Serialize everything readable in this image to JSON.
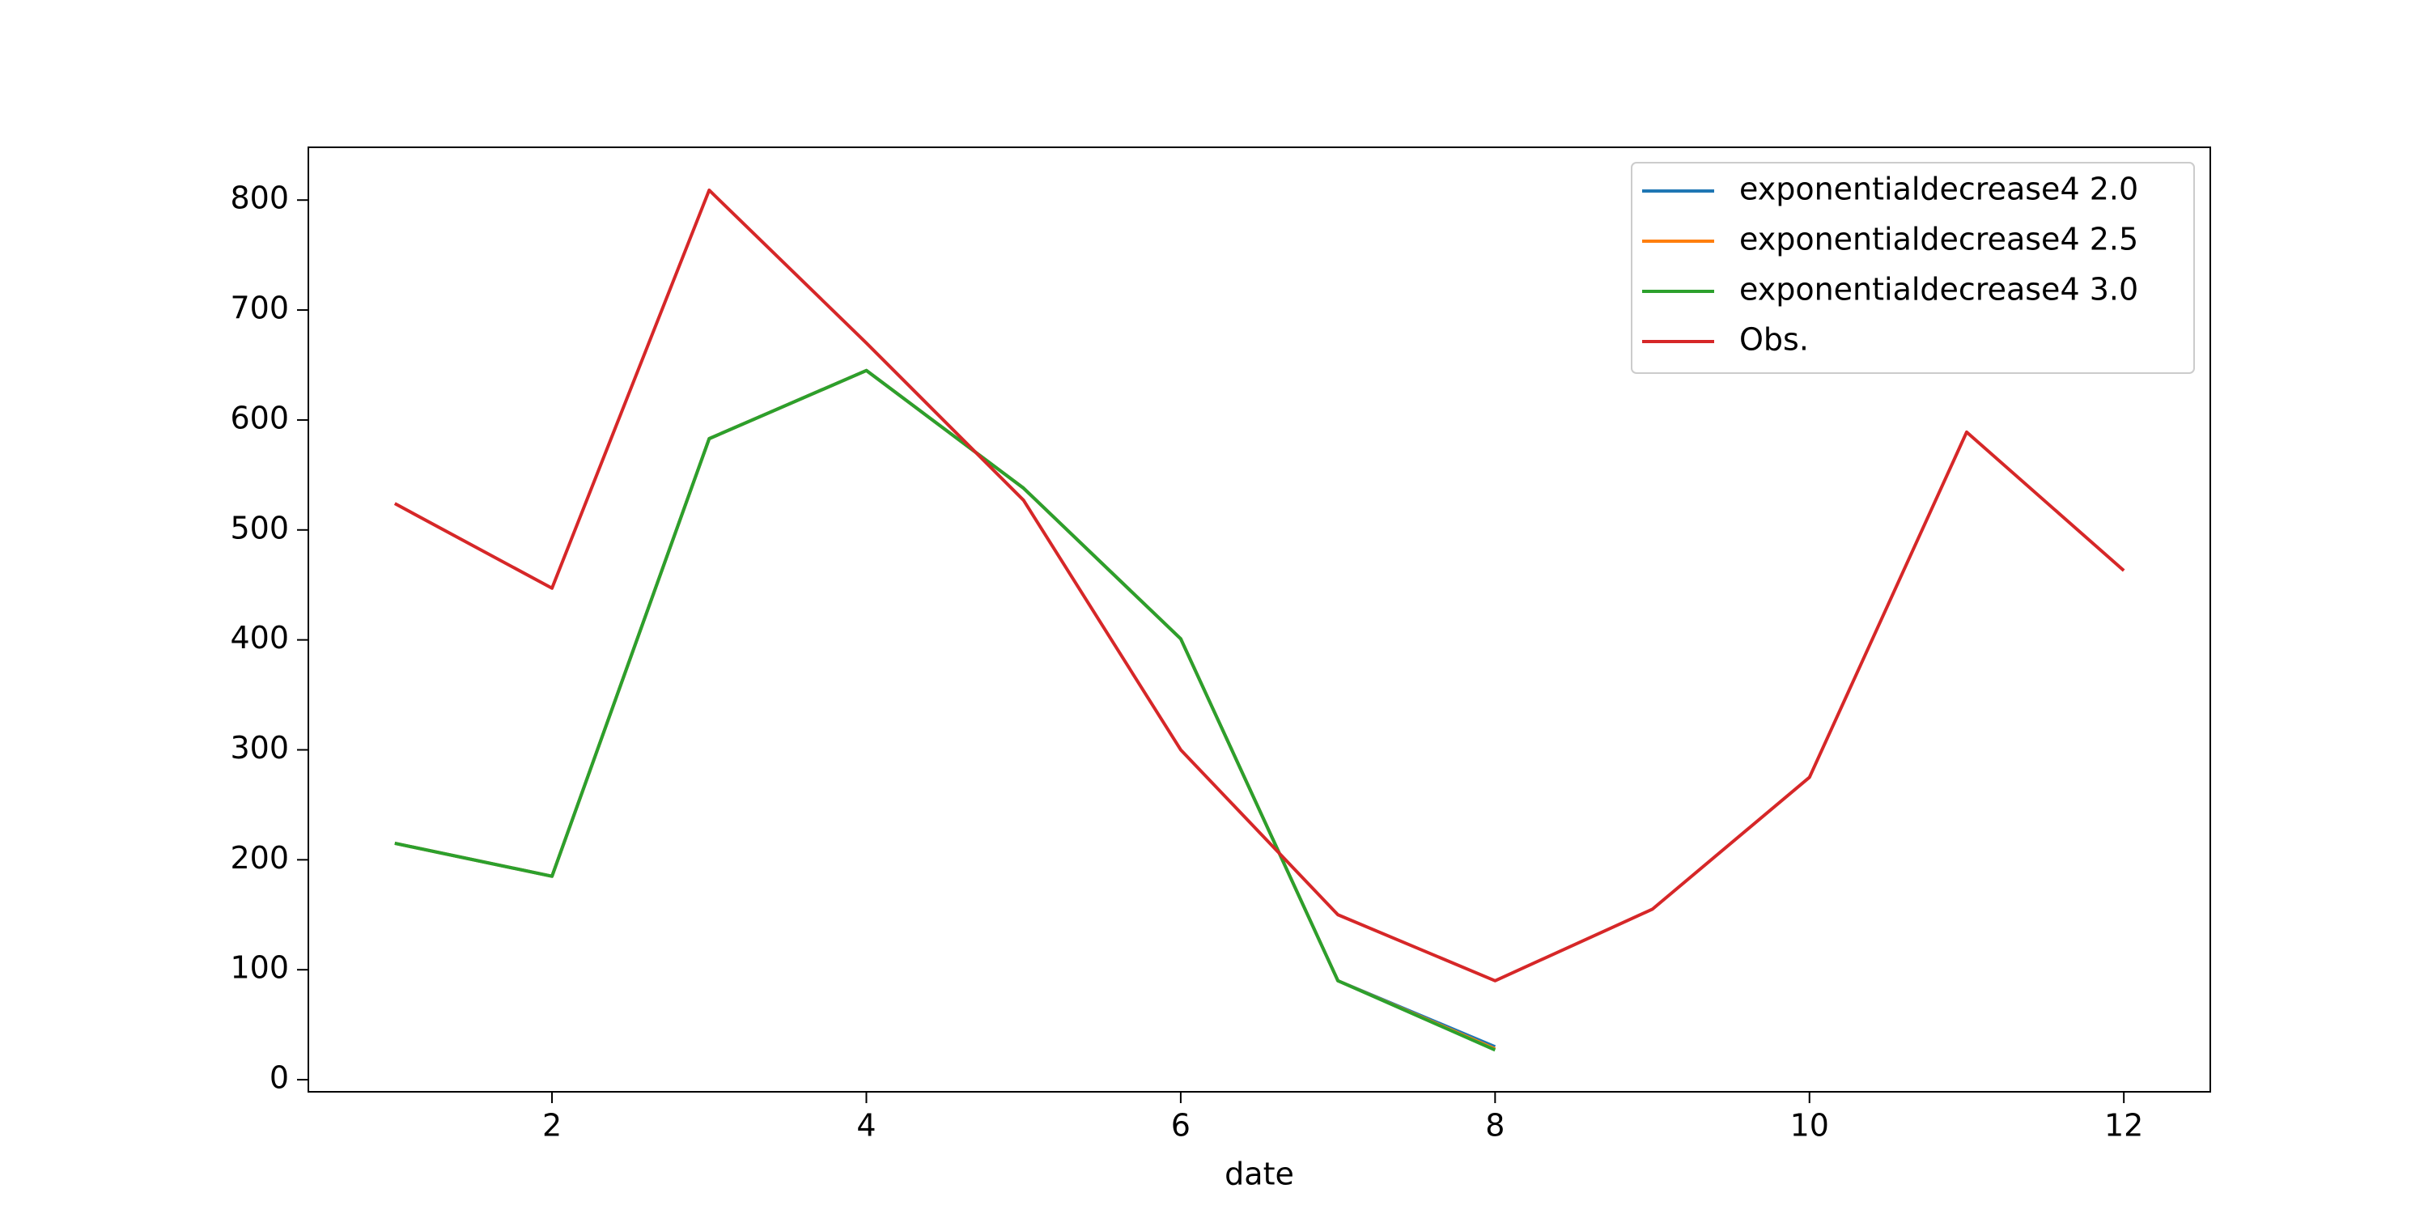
{
  "chart_data": {
    "type": "line",
    "x_label": "date",
    "x": [
      1,
      2,
      3,
      4,
      5,
      6,
      7,
      8,
      9,
      10,
      11,
      12
    ],
    "series": [
      {
        "name": "exponentialdecrease4 2.0",
        "color": "#1f77b4",
        "values": [
          215,
          185,
          583,
          645,
          538,
          401,
          90,
          30,
          null,
          null,
          null,
          null
        ]
      },
      {
        "name": "exponentialdecrease4 2.5",
        "color": "#ff7f0e",
        "values": [
          215,
          185,
          583,
          645,
          538,
          401,
          90,
          28,
          null,
          null,
          null,
          null
        ]
      },
      {
        "name": "exponentialdecrease4 3.0",
        "color": "#2ca02c",
        "values": [
          215,
          185,
          583,
          645,
          538,
          401,
          90,
          27,
          null,
          null,
          null,
          null
        ]
      },
      {
        "name": "Obs.",
        "color": "#d62728",
        "values": [
          524,
          447,
          809,
          670,
          527,
          300,
          150,
          90,
          155,
          275,
          589,
          463
        ]
      }
    ],
    "xlim": [
      0.45,
      12.55
    ],
    "xticks": [
      2,
      4,
      6,
      8,
      10,
      12
    ],
    "ylim": [
      -11,
      848
    ],
    "yticks": [
      0,
      100,
      200,
      300,
      400,
      500,
      600,
      700,
      800
    ],
    "grid": false,
    "legend": "upper right"
  }
}
